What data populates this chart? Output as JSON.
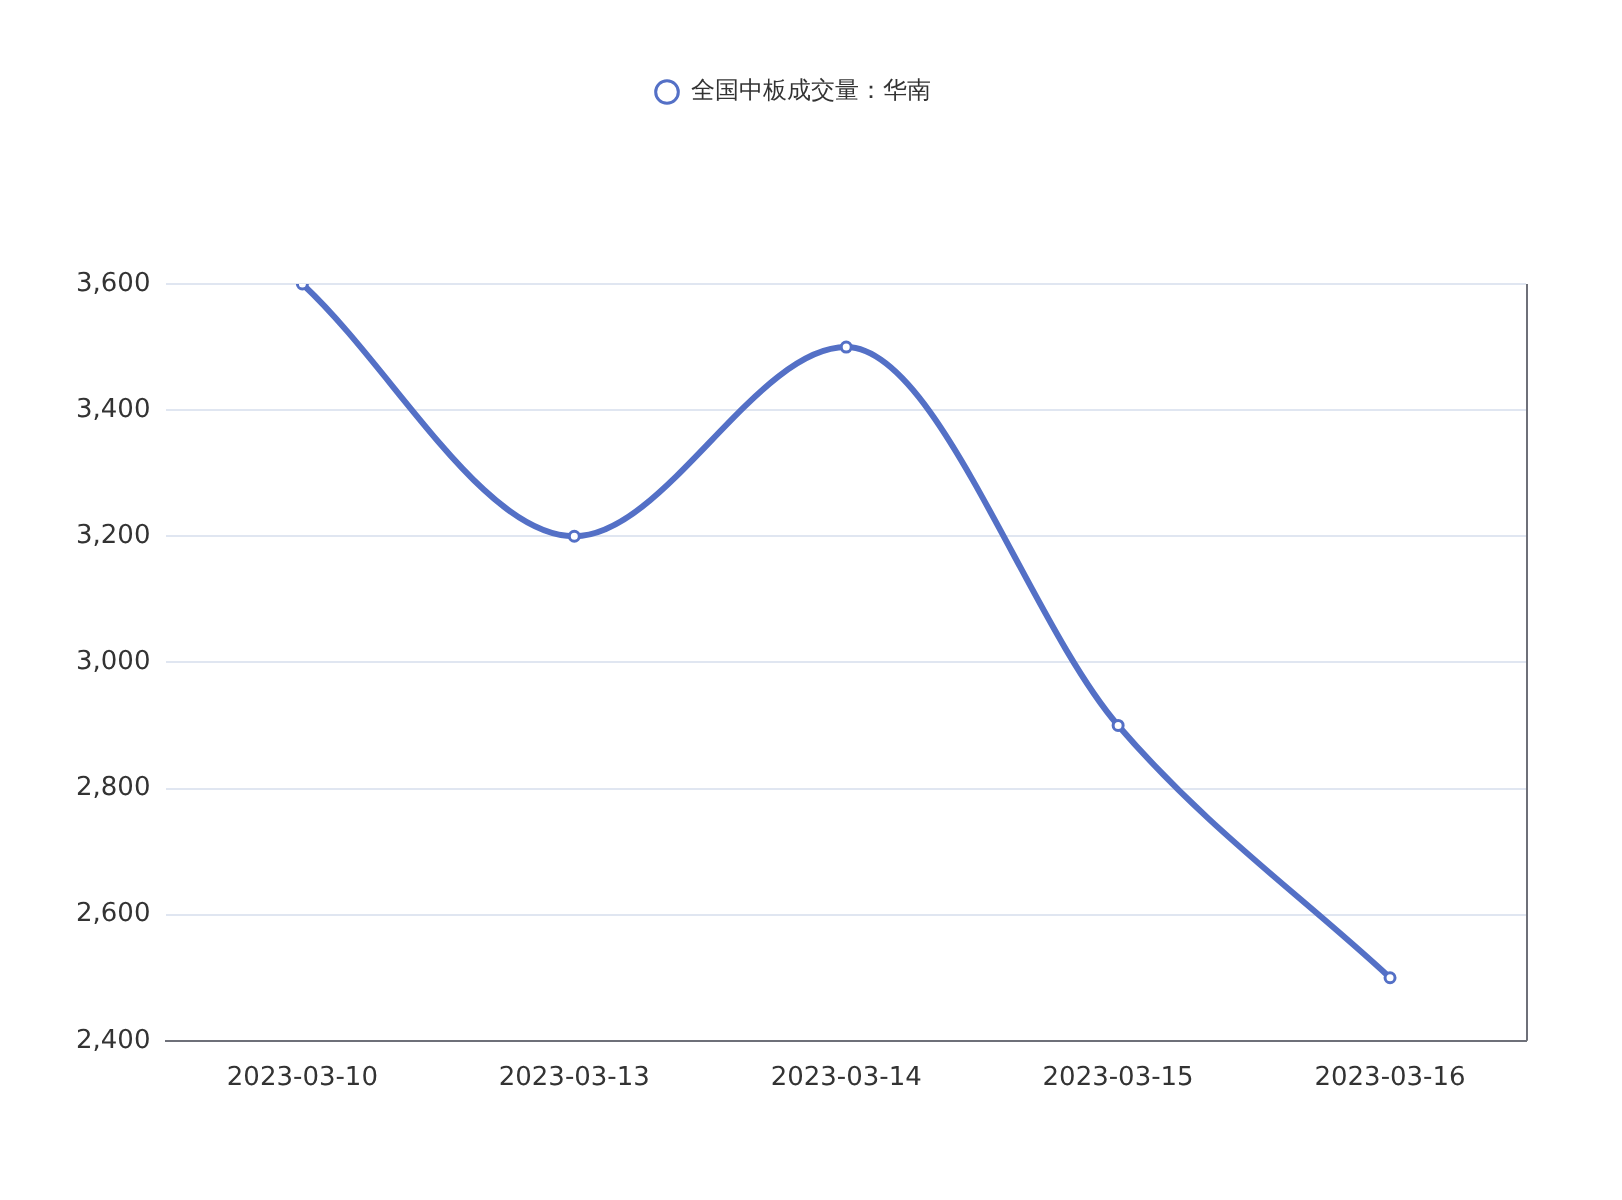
{
  "chart_data": {
    "type": "line",
    "categories": [
      "2023-03-10",
      "2023-03-13",
      "2023-03-14",
      "2023-03-15",
      "2023-03-16"
    ],
    "series": [
      {
        "name": "全国中板成交量：华南",
        "color": "#5470c6",
        "values": [
          3600,
          3200,
          3500,
          2900,
          2500
        ]
      }
    ],
    "ylim": [
      2400,
      3600
    ],
    "yticks": [
      {
        "value": 2400,
        "label": "2,400"
      },
      {
        "value": 2600,
        "label": "2,600"
      },
      {
        "value": 2800,
        "label": "2,800"
      },
      {
        "value": 3000,
        "label": "3,000"
      },
      {
        "value": 3200,
        "label": "3,200"
      },
      {
        "value": 3400,
        "label": "3,400"
      },
      {
        "value": 3600,
        "label": "3,600"
      }
    ],
    "grid": "y",
    "legend": "top",
    "marker": "circle",
    "line_style": "solid"
  }
}
